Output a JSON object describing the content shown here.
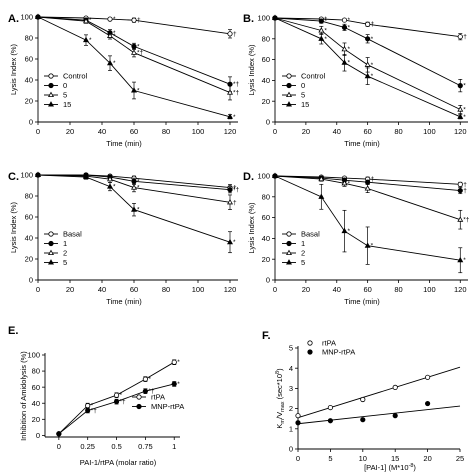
{
  "chart_data": [
    {
      "type": "line",
      "panel_label": "A.",
      "xlabel": "Time (min)",
      "ylabel": "Lysis Index (%)",
      "xlim": [
        0,
        125
      ],
      "ylim": [
        0,
        100
      ],
      "xticks": [
        0,
        20,
        40,
        60,
        80,
        100,
        120
      ],
      "yticks": [
        0,
        20,
        40,
        60,
        80,
        100
      ],
      "legend_position": "lower-left",
      "series": [
        {
          "name": "Control",
          "marker": "open-circle",
          "x": [
            0,
            30,
            45,
            60,
            120
          ],
          "y": [
            100,
            99,
            98,
            97,
            84
          ],
          "err": [
            0,
            1,
            1,
            2,
            4
          ],
          "annot": [
            "",
            "",
            "*",
            "†",
            "†"
          ]
        },
        {
          "name": "0",
          "marker": "filled-circle",
          "x": [
            0,
            30,
            45,
            60,
            120
          ],
          "y": [
            100,
            97,
            85,
            72,
            36
          ],
          "err": [
            0,
            2,
            3,
            3,
            7
          ],
          "annot": [
            "",
            "*",
            "*",
            "*",
            "*†"
          ]
        },
        {
          "name": "5",
          "marker": "open-triangle",
          "x": [
            0,
            30,
            45,
            60,
            120
          ],
          "y": [
            100,
            96,
            82,
            66,
            28
          ],
          "err": [
            0,
            2,
            3,
            4,
            7
          ],
          "annot": [
            "",
            "",
            "*",
            "*†",
            "*†"
          ]
        },
        {
          "name": "15",
          "marker": "filled-triangle",
          "x": [
            0,
            30,
            45,
            60,
            120
          ],
          "y": [
            100,
            78,
            56,
            30,
            5
          ],
          "err": [
            0,
            5,
            7,
            8,
            2
          ],
          "annot": [
            "",
            "*",
            "*",
            "*",
            "*"
          ]
        }
      ]
    },
    {
      "type": "line",
      "panel_label": "B.",
      "xlabel": "Time (min)",
      "ylabel": "Lysis Index (%)",
      "xlim": [
        0,
        125
      ],
      "ylim": [
        0,
        100
      ],
      "xticks": [
        0,
        20,
        40,
        60,
        80,
        100,
        120
      ],
      "yticks": [
        0,
        20,
        40,
        60,
        80,
        100
      ],
      "legend_position": "lower-left",
      "series": [
        {
          "name": "Control",
          "marker": "open-circle",
          "x": [
            0,
            30,
            45,
            60,
            120
          ],
          "y": [
            100,
            99,
            98,
            94,
            82
          ],
          "err": [
            0,
            1,
            1,
            2,
            3
          ],
          "annot": [
            "",
            "*",
            "*",
            "†",
            "†"
          ]
        },
        {
          "name": "0",
          "marker": "filled-circle",
          "x": [
            0,
            30,
            45,
            60,
            120
          ],
          "y": [
            100,
            97,
            91,
            80,
            35
          ],
          "err": [
            0,
            2,
            3,
            4,
            6
          ],
          "annot": [
            "",
            "*",
            "*",
            "*",
            "*"
          ]
        },
        {
          "name": "5",
          "marker": "open-triangle",
          "x": [
            0,
            30,
            45,
            60,
            120
          ],
          "y": [
            100,
            88,
            70,
            55,
            12
          ],
          "err": [
            0,
            4,
            6,
            7,
            4
          ],
          "annot": [
            "",
            "*",
            "*",
            "*",
            "*"
          ]
        },
        {
          "name": "15",
          "marker": "filled-triangle",
          "x": [
            0,
            30,
            45,
            60,
            120
          ],
          "y": [
            100,
            80,
            57,
            44,
            5
          ],
          "err": [
            0,
            5,
            8,
            8,
            2
          ],
          "annot": [
            "",
            "*",
            "*",
            "*",
            "*"
          ]
        }
      ]
    },
    {
      "type": "line",
      "panel_label": "C.",
      "xlabel": "Time (min)",
      "ylabel": "Lysis Index (%)",
      "xlim": [
        0,
        125
      ],
      "ylim": [
        0,
        100
      ],
      "xticks": [
        0,
        20,
        40,
        60,
        80,
        100,
        120
      ],
      "yticks": [
        0,
        20,
        40,
        60,
        80,
        100
      ],
      "legend_position": "lower-left",
      "series": [
        {
          "name": "Basal",
          "marker": "open-circle",
          "x": [
            0,
            30,
            45,
            60,
            120
          ],
          "y": [
            100,
            100,
            99,
            97,
            88
          ],
          "err": [
            0,
            1,
            1,
            2,
            3
          ],
          "annot": [
            "",
            "",
            "",
            "",
            "†"
          ]
        },
        {
          "name": "1",
          "marker": "filled-circle",
          "x": [
            0,
            30,
            45,
            60,
            120
          ],
          "y": [
            100,
            100,
            98,
            94,
            86
          ],
          "err": [
            0,
            1,
            2,
            3,
            3
          ],
          "annot": [
            "",
            "",
            "",
            "*",
            "*†"
          ]
        },
        {
          "name": "2",
          "marker": "open-triangle",
          "x": [
            0,
            30,
            45,
            60,
            120
          ],
          "y": [
            100,
            99,
            96,
            88,
            74
          ],
          "err": [
            0,
            1,
            3,
            4,
            7
          ],
          "annot": [
            "",
            "",
            "",
            "*",
            "†"
          ]
        },
        {
          "name": "5",
          "marker": "filled-triangle",
          "x": [
            0,
            30,
            45,
            60,
            120
          ],
          "y": [
            100,
            98,
            89,
            67,
            36
          ],
          "err": [
            0,
            2,
            4,
            6,
            10
          ],
          "annot": [
            "",
            "",
            "*",
            "*",
            "*"
          ]
        }
      ]
    },
    {
      "type": "line",
      "panel_label": "D.",
      "xlabel": "Time (min)",
      "ylabel": "Lysis Index (%)",
      "xlim": [
        0,
        125
      ],
      "ylim": [
        0,
        100
      ],
      "xticks": [
        0,
        20,
        40,
        60,
        80,
        100,
        120
      ],
      "yticks": [
        0,
        20,
        40,
        60,
        80,
        100
      ],
      "legend_position": "lower-left",
      "series": [
        {
          "name": "Basal",
          "marker": "open-circle",
          "x": [
            0,
            30,
            45,
            60,
            120
          ],
          "y": [
            100,
            99,
            98,
            97,
            92
          ],
          "err": [
            0,
            1,
            1,
            2,
            2
          ],
          "annot": [
            "",
            "",
            "",
            "†",
            "†"
          ]
        },
        {
          "name": "1",
          "marker": "filled-circle",
          "x": [
            0,
            30,
            45,
            60,
            120
          ],
          "y": [
            100,
            98,
            96,
            94,
            86
          ],
          "err": [
            0,
            1,
            2,
            2,
            3
          ],
          "annot": [
            "",
            "",
            "",
            "",
            "†"
          ]
        },
        {
          "name": "2",
          "marker": "open-triangle",
          "x": [
            0,
            30,
            45,
            60,
            120
          ],
          "y": [
            100,
            97,
            93,
            88,
            58
          ],
          "err": [
            0,
            2,
            3,
            4,
            9
          ],
          "annot": [
            "",
            "",
            "*",
            "",
            "*†"
          ]
        },
        {
          "name": "5",
          "marker": "filled-triangle",
          "x": [
            0,
            30,
            45,
            60,
            120
          ],
          "y": [
            100,
            80,
            47,
            33,
            19
          ],
          "err": [
            0,
            12,
            20,
            18,
            12
          ],
          "annot": [
            "",
            "",
            "*",
            "*",
            "*"
          ]
        }
      ]
    },
    {
      "type": "line",
      "panel_label": "E.",
      "xlabel": "PAI-1/rtPA (molar ratio)",
      "ylabel": "Inhibition of Amidolysis (%)",
      "xlim": [
        -0.12,
        1.05
      ],
      "ylim": [
        -2,
        100
      ],
      "xticks": [
        0,
        0.25,
        0.5,
        0.75,
        1
      ],
      "xticklabels": [
        "0",
        "0.25",
        "0.5",
        "0.75",
        "1"
      ],
      "yticks": [
        0,
        20,
        40,
        60,
        80,
        100
      ],
      "legend_position": "lower-right",
      "series": [
        {
          "name": "rtPA",
          "marker": "open-circle",
          "x": [
            0,
            0.25,
            0.5,
            0.75,
            1
          ],
          "y": [
            2,
            37,
            50,
            70,
            91
          ],
          "err": [
            1,
            3,
            3,
            3,
            3
          ],
          "annot": [
            "",
            "*",
            "*",
            "*",
            "*"
          ]
        },
        {
          "name": "MNP-rtPA",
          "marker": "filled-circle",
          "x": [
            0,
            0.25,
            0.5,
            0.75,
            1
          ],
          "y": [
            2,
            31,
            42,
            55,
            64
          ],
          "err": [
            1,
            3,
            3,
            3,
            3
          ],
          "annot": [
            "",
            "*†",
            "*†",
            "*†",
            "*"
          ]
        }
      ]
    },
    {
      "type": "scatter",
      "panel_label": "F.",
      "xlabel": "[PAI-1] (M*10⁻⁸)",
      "ylabel": "Km/Vmax (sec*10⁸)",
      "ylabel_main": "K",
      "ylabel_sub1": "m",
      "ylabel_mid": "/V",
      "ylabel_sub2": "max",
      "ylabel_tail": " (sec*10",
      "ylabel_sup": "8",
      "ylabel_end": ")",
      "xlabel_main": "[PAI-1] (M*10",
      "xlabel_sup": "-8",
      "xlabel_end": ")",
      "xlim": [
        0,
        25
      ],
      "ylim": [
        0,
        5
      ],
      "xticks": [
        0,
        5,
        10,
        15,
        20,
        25
      ],
      "yticks": [
        0,
        1,
        2,
        3,
        4,
        5
      ],
      "legend_position": "top-left",
      "series": [
        {
          "name": "rtPA",
          "marker": "open-circle",
          "x": [
            0,
            5,
            10,
            15,
            20
          ],
          "y": [
            1.65,
            2.05,
            2.45,
            3.05,
            3.55
          ],
          "fit": [
            1.55,
            0.1
          ]
        },
        {
          "name": "MNP-rtPA",
          "marker": "filled-circle",
          "x": [
            0,
            5,
            10,
            15,
            20
          ],
          "y": [
            1.3,
            1.4,
            1.45,
            1.65,
            2.25
          ],
          "fit": [
            1.25,
            0.035
          ]
        }
      ]
    }
  ]
}
